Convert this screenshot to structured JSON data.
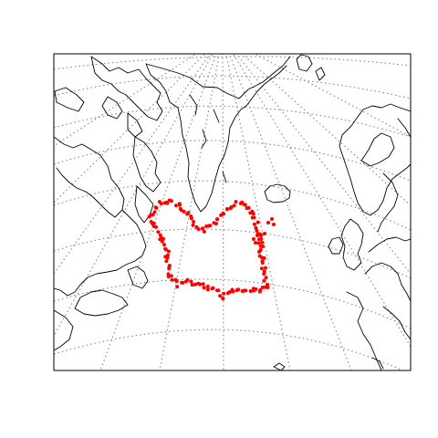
{
  "map": {
    "projection": "polar-stereographic-north",
    "region": "North Atlantic",
    "graticule": "dotted",
    "coastline_color": "#000000",
    "graticule_color": "#8c8c8c",
    "frame_color": "#000000"
  },
  "track": {
    "color": "#ff0000",
    "point_count": 150
  }
}
